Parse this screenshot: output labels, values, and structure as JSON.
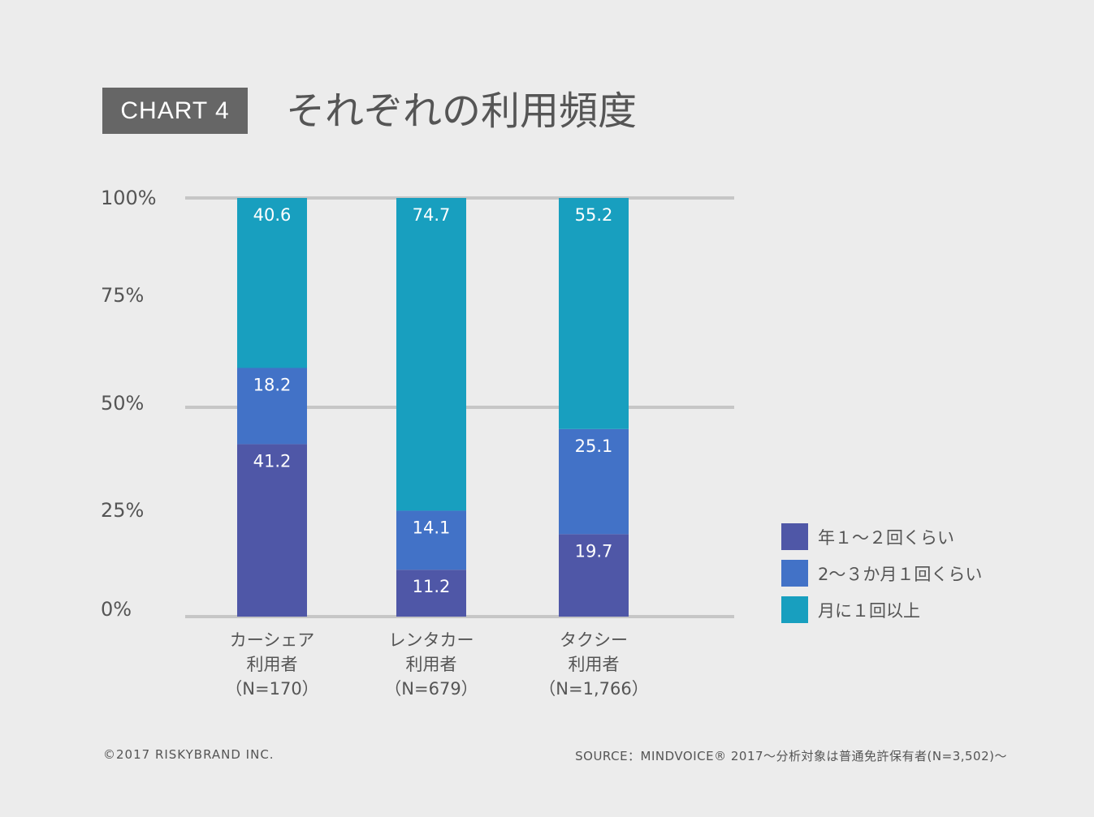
{
  "header": {
    "badge": "CHART 4",
    "title": "それぞれの利用頻度"
  },
  "chart_data": {
    "type": "bar",
    "stacked": true,
    "categories": [
      {
        "line1": "カーシェア",
        "line2": "利用者",
        "line3": "（N=170）"
      },
      {
        "line1": "レンタカー",
        "line2": "利用者",
        "line3": "（N=679）"
      },
      {
        "line1": "タクシー",
        "line2": "利用者",
        "line3": "（N=1,766）"
      }
    ],
    "series": [
      {
        "name": "年１〜２回くらい",
        "color": "#4f57a7",
        "values": [
          41.2,
          11.2,
          19.7
        ]
      },
      {
        "name": "2〜３か月１回くらい",
        "color": "#4272c7",
        "values": [
          18.2,
          14.1,
          25.1
        ]
      },
      {
        "name": "月に１回以上",
        "color": "#189fbf",
        "values": [
          40.6,
          74.7,
          55.2
        ]
      }
    ],
    "y_ticks": [
      "0%",
      "25%",
      "50%",
      "75%",
      "100%"
    ],
    "ylim": [
      0,
      100
    ],
    "gridlines": [
      0,
      50,
      100
    ],
    "legend_position": "right"
  },
  "footer": {
    "copyright": "©2017 RISKYBRAND INC.",
    "source": "SOURCE：MINDVOICE® 2017〜分析対象は普通免許保有者(N=3,502)〜"
  }
}
